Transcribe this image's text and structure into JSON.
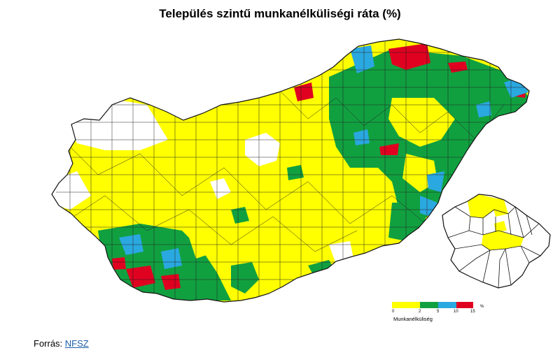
{
  "title": "Település szintű munkanélküliségi ráta (%)",
  "legend": {
    "ticks": [
      "0",
      "2",
      "5",
      "10",
      "15",
      "%"
    ],
    "title": "Munkanélküliség",
    "colors": [
      "#ffff00",
      "#11a040",
      "#2aa8e0",
      "#e00020"
    ],
    "no_data_color": "#ffffff"
  },
  "source": {
    "label": "Forrás:",
    "link": "NFSZ"
  },
  "inset": {
    "description_shown": false
  }
}
